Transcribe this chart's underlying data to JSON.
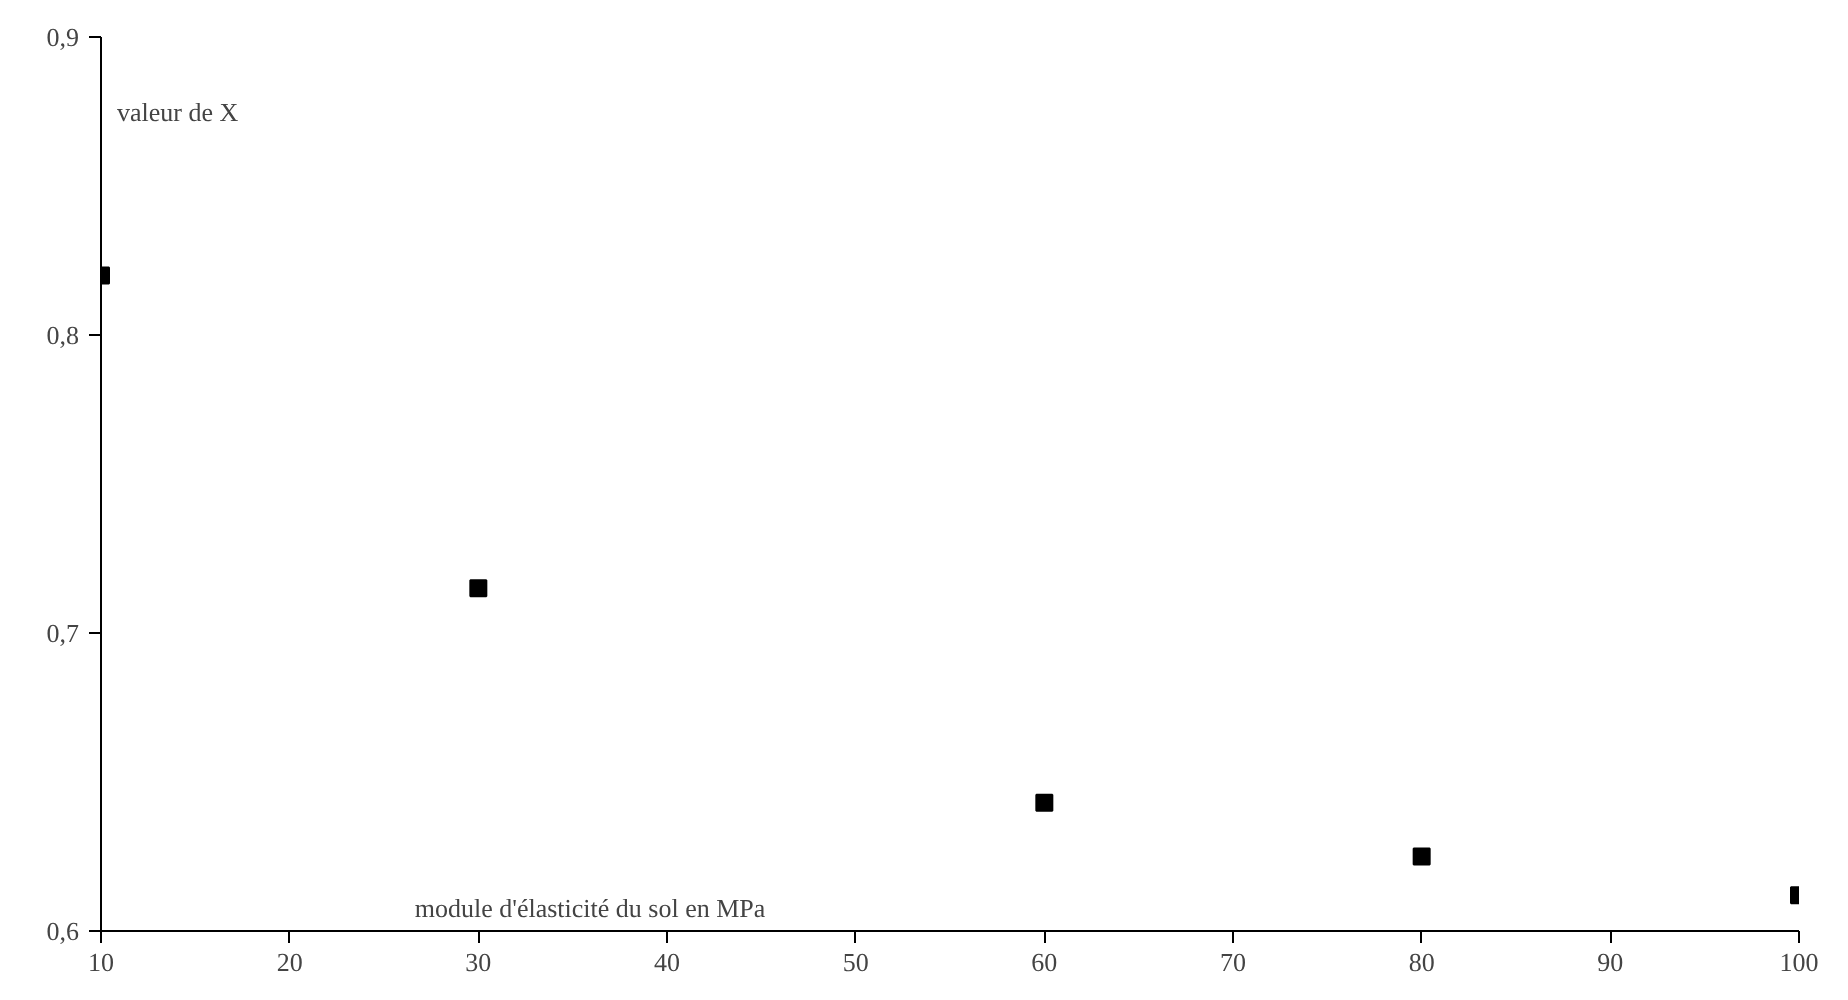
{
  "chart_data": {
    "type": "scatter",
    "xlabel": "module d'élasticité du sol en MPa",
    "ylabel": "valeur de X",
    "x": [
      10,
      30,
      60,
      80,
      100
    ],
    "series": [
      {
        "color": "#000000",
        "values": [
          0.82,
          0.715,
          0.643,
          0.625,
          0.612
        ]
      }
    ],
    "xlim": [
      10,
      100
    ],
    "ylim": [
      0.6,
      0.9
    ],
    "xticks": [
      10,
      20,
      30,
      40,
      50,
      60,
      70,
      80,
      90,
      100
    ],
    "yticks": [
      {
        "value": 0.6,
        "label": "0,6"
      },
      {
        "value": 0.7,
        "label": "0,7"
      },
      {
        "value": 0.8,
        "label": "0,8"
      },
      {
        "value": 0.9,
        "label": "0,9"
      }
    ],
    "grid": false,
    "marker": "square"
  }
}
